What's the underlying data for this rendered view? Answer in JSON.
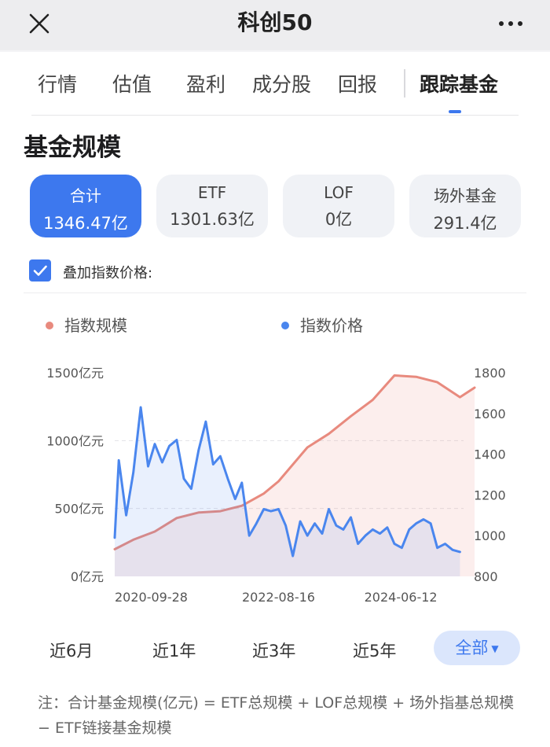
{
  "header": {
    "title": "科创50"
  },
  "tabs": [
    {
      "label": "行情",
      "active": false
    },
    {
      "label": "估值",
      "active": false
    },
    {
      "label": "盈利",
      "active": false
    },
    {
      "label": "成分股",
      "active": false
    },
    {
      "label": "回报",
      "active": false
    },
    {
      "label": "跟踪基金",
      "active": true
    }
  ],
  "section_title": "基金规模",
  "chips": [
    {
      "label": "合计",
      "value": "1346.47亿",
      "active": true
    },
    {
      "label": "ETF",
      "value": "1301.63亿",
      "active": false
    },
    {
      "label": "LOF",
      "value": "0亿",
      "active": false
    },
    {
      "label": "场外基金",
      "value": "291.4亿",
      "active": false
    }
  ],
  "overlay_checkbox": {
    "label": "叠加指数价格:",
    "checked": true
  },
  "legend": [
    {
      "label": "指数规模",
      "color": "#e88a7e"
    },
    {
      "label": "指数价格",
      "color": "#4a86ee"
    }
  ],
  "chart_data": {
    "type": "line",
    "series": [
      {
        "name": "指数规模",
        "axis": "left",
        "color": "#e88a7e",
        "x": [
          "2020-09-28",
          "2020-12",
          "2021-03",
          "2021-06",
          "2021-09",
          "2021-12",
          "2022-03",
          "2022-06",
          "2022-08-16",
          "2022-12",
          "2023-03",
          "2023-06",
          "2023-09",
          "2023-12",
          "2024-03",
          "2024-06-12",
          "2024-09",
          "2024-11"
        ],
        "values": [
          200,
          270,
          330,
          430,
          470,
          480,
          520,
          610,
          700,
          950,
          1050,
          1180,
          1300,
          1480,
          1470,
          1430,
          1320,
          1390
        ]
      },
      {
        "name": "指数价格",
        "axis": "right",
        "color": "#4a86ee",
        "x": [
          "2020-09-28",
          "2020-10",
          "2020-11",
          "2020-12",
          "2021-01",
          "2021-02",
          "2021-03",
          "2021-04",
          "2021-05",
          "2021-06",
          "2021-07",
          "2021-08",
          "2021-09",
          "2021-10",
          "2021-11",
          "2021-12",
          "2022-01",
          "2022-02",
          "2022-03",
          "2022-04",
          "2022-05",
          "2022-06",
          "2022-07",
          "2022-08-16",
          "2022-09",
          "2022-10",
          "2022-11",
          "2022-12",
          "2023-01",
          "2023-02",
          "2023-03",
          "2023-04",
          "2023-05",
          "2023-06",
          "2023-07",
          "2023-08",
          "2023-09",
          "2023-10",
          "2023-11",
          "2023-12",
          "2024-01",
          "2024-02",
          "2024-03",
          "2024-04",
          "2024-05",
          "2024-06-12",
          "2024-07",
          "2024-08",
          "2024-09"
        ],
        "values": [
          990,
          1370,
          1100,
          1310,
          1630,
          1340,
          1450,
          1360,
          1440,
          1470,
          1280,
          1230,
          1420,
          1560,
          1350,
          1390,
          1280,
          1180,
          1260,
          1000,
          1060,
          1130,
          1120,
          1130,
          1050,
          900,
          1070,
          1000,
          1060,
          1010,
          1130,
          1050,
          1030,
          1090,
          960,
          1000,
          1030,
          1010,
          1040,
          960,
          940,
          1030,
          1060,
          1080,
          1060,
          940,
          960,
          930,
          920
        ]
      }
    ],
    "y_left": {
      "ticks": [
        "1500亿元",
        "1000亿元",
        "500亿元",
        "0亿元"
      ],
      "range": [
        0,
        1500
      ]
    },
    "y_right": {
      "ticks": [
        "1800",
        "1600",
        "1400",
        "1200",
        "1000",
        "800"
      ],
      "range": [
        800,
        1800
      ]
    },
    "x_ticks": [
      "2020-09-28",
      "2022-08-16",
      "2024-06-12"
    ],
    "x_range": [
      "2020-09-28",
      "2024-09-30"
    ],
    "grid": true,
    "legend_position": "top-left"
  },
  "ranges": [
    {
      "label": "近6月",
      "active": false
    },
    {
      "label": "近1年",
      "active": false
    },
    {
      "label": "近3年",
      "active": false
    },
    {
      "label": "近5年",
      "active": false
    },
    {
      "label": "全部",
      "active": true
    }
  ],
  "note": "注：合计基金规模(亿元) = ETF总规模 + LOF总规模 + 场外指基总规模 − ETF链接基金规模"
}
